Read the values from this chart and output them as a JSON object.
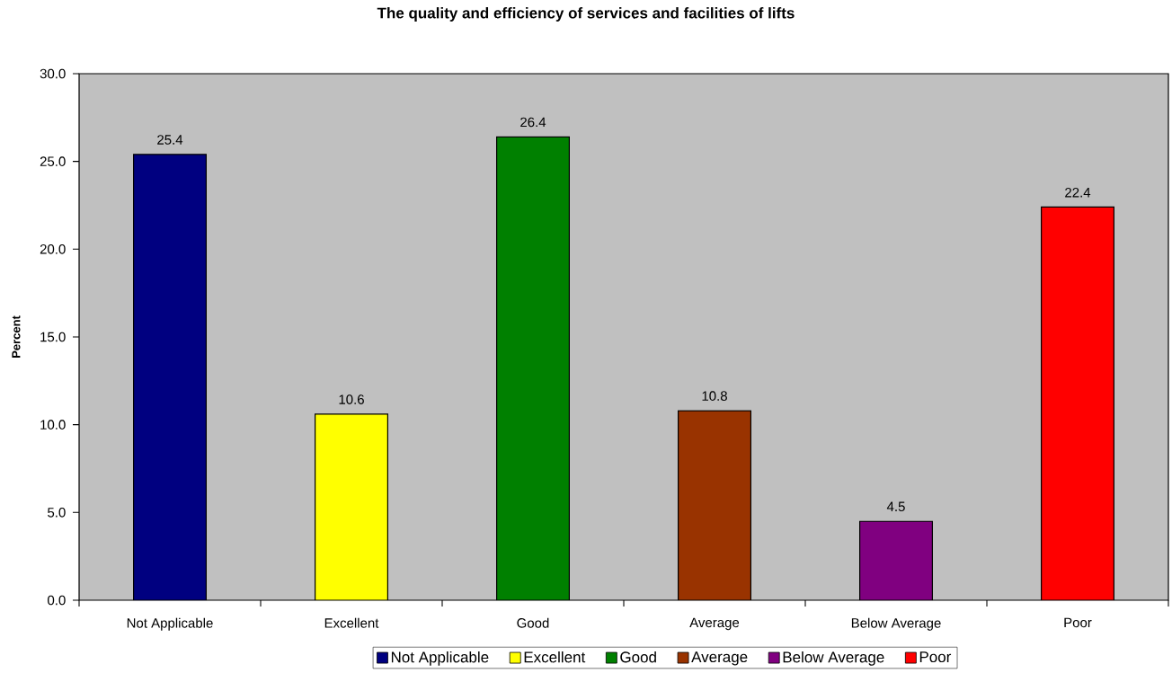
{
  "chart_data": {
    "type": "bar",
    "title": "The quality and efficiency of services and facilities of lifts",
    "ylabel": "Percent",
    "categories": [
      "Not Applicable",
      "Excellent",
      "Good",
      "Average",
      "Below Average",
      "Poor"
    ],
    "series": [
      {
        "name": "Not Applicable",
        "color": "#000080",
        "values": [
          25.4,
          null,
          null,
          null,
          null,
          null
        ]
      },
      {
        "name": "Excellent",
        "color": "#ffff00",
        "values": [
          null,
          10.6,
          null,
          null,
          null,
          null
        ]
      },
      {
        "name": "Good",
        "color": "#008000",
        "values": [
          null,
          null,
          26.4,
          null,
          null,
          null
        ]
      },
      {
        "name": "Average",
        "color": "#993300",
        "values": [
          null,
          null,
          null,
          10.8,
          null,
          null
        ]
      },
      {
        "name": "Below Average",
        "color": "#800080",
        "values": [
          null,
          null,
          null,
          null,
          4.5,
          null
        ]
      },
      {
        "name": "Poor",
        "color": "#ff0000",
        "values": [
          null,
          null,
          null,
          null,
          null,
          22.4
        ]
      }
    ],
    "ylim": [
      0,
      30
    ],
    "yticks": [
      {
        "value": 0,
        "label": "0.0"
      },
      {
        "value": 5,
        "label": "5.0"
      },
      {
        "value": 10,
        "label": "10.0"
      },
      {
        "value": 15,
        "label": "15.0"
      },
      {
        "value": 20,
        "label": "20.0"
      },
      {
        "value": 25,
        "label": "25.0"
      },
      {
        "value": 30,
        "label": "30.0"
      }
    ],
    "data_labels": true,
    "legend": "bottom"
  }
}
